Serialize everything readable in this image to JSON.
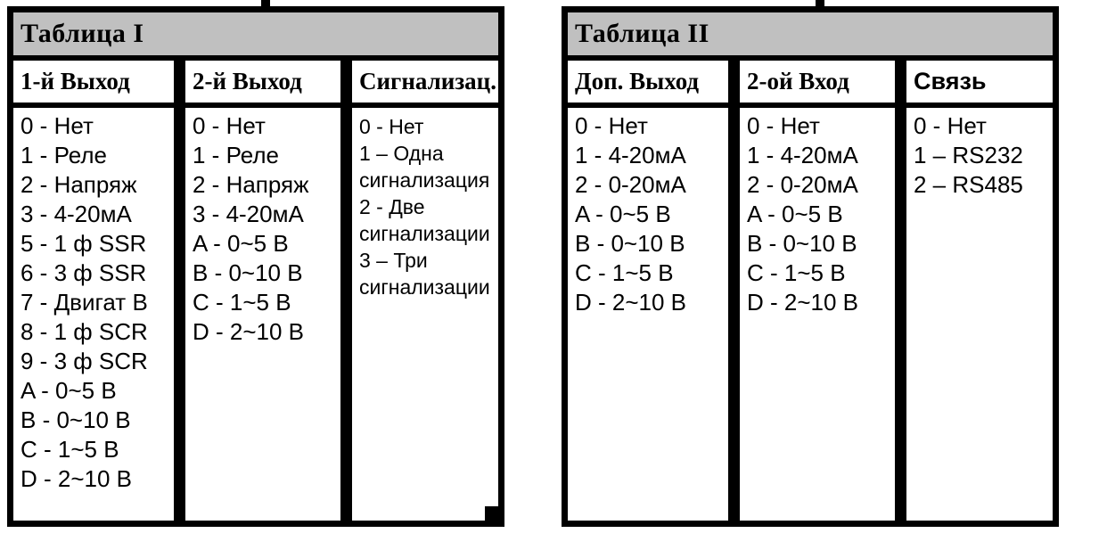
{
  "colors": {
    "page_background": "#ffffff",
    "border": "#000000",
    "title_bar_background": "#c0c0c0",
    "cell_background": "#ffffff",
    "text": "#000000"
  },
  "tables": [
    {
      "title": "Таблица I",
      "columns": [
        {
          "header": "1-й Выход",
          "items": [
            "0 - Нет",
            "1 - Реле",
            "2 - Напряж",
            "3 - 4-20мА",
            "5 - 1 ф SSR",
            "6 - 3 ф SSR",
            "7 - Двигат В",
            "8 - 1 ф SCR",
            "9 - 3 ф SCR",
            "A - 0~5 В",
            "B - 0~10 В",
            "C - 1~5 В",
            "D - 2~10 В"
          ]
        },
        {
          "header": "2-й Выход",
          "items": [
            "0 - Нет",
            "1 - Реле",
            "2 - Напряж",
            "3 - 4-20мА",
            "A - 0~5 В",
            "B - 0~10 В",
            "C - 1~5 В",
            "D - 2~10 В"
          ]
        },
        {
          "header": "Сигнализац.",
          "items": [
            "0 - Нет",
            "1 – Одна сигнализация",
            "2 - Две сигнализации",
            "3 – Три сигнализации"
          ]
        }
      ]
    },
    {
      "title": "Таблица II",
      "columns": [
        {
          "header": "Доп. Выход",
          "items": [
            "0 - Нет",
            "1 - 4-20мА",
            "2 - 0-20мА",
            "A - 0~5 В",
            "B - 0~10 В",
            "C - 1~5 В",
            "D - 2~10 В"
          ]
        },
        {
          "header": "2-ой Вход",
          "items": [
            "0 - Нет",
            "1 - 4-20мА",
            "2 - 0-20мА",
            "A - 0~5 В",
            "B - 0~10 В",
            "C - 1~5 В",
            "D - 2~10 В"
          ]
        },
        {
          "header": "Связь",
          "items": [
            "0 - Нет",
            "1 – RS232",
            "2 – RS485"
          ]
        }
      ]
    }
  ]
}
